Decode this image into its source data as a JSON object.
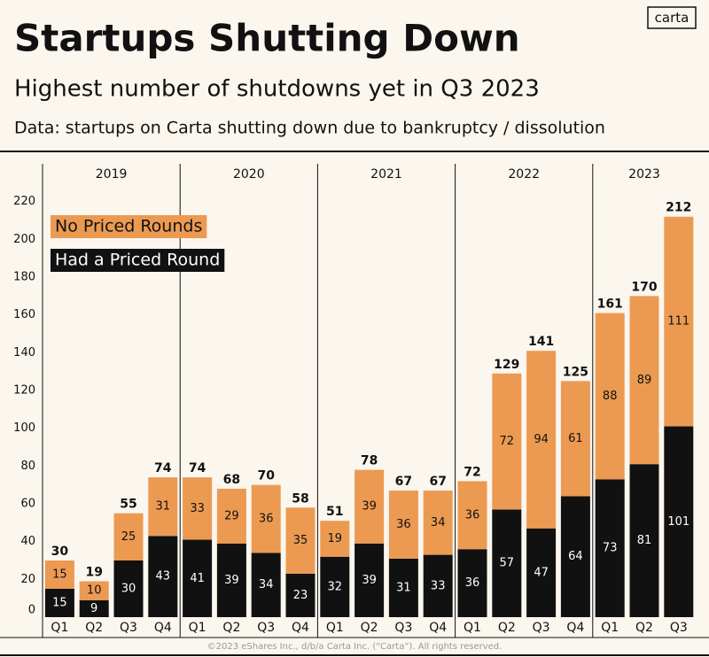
{
  "logo": "carta",
  "footer": "©2023 eShares Inc., d/b/a Carta Inc. (“Carta”). All rights reserved.",
  "chart_data": {
    "type": "stacked-bar",
    "title": "Startups Shutting Down",
    "subtitle": "Highest number of shutdowns yet in Q3 2023",
    "note": "Data: startups on Carta shutting down due to bankruptcy / dissolution",
    "groups": [
      {
        "label": "2019",
        "categories": [
          "Q1",
          "Q2",
          "Q3",
          "Q4"
        ]
      },
      {
        "label": "2020",
        "categories": [
          "Q1",
          "Q2",
          "Q3",
          "Q4"
        ]
      },
      {
        "label": "2021",
        "categories": [
          "Q1",
          "Q2",
          "Q3",
          "Q4"
        ]
      },
      {
        "label": "2022",
        "categories": [
          "Q1",
          "Q2",
          "Q3",
          "Q4"
        ]
      },
      {
        "label": "2023",
        "categories": [
          "Q1",
          "Q2",
          "Q3"
        ]
      }
    ],
    "series": [
      {
        "name": "Had a Priced Round",
        "color": "#111111",
        "values": [
          15,
          9,
          30,
          43,
          41,
          39,
          34,
          23,
          32,
          39,
          31,
          33,
          36,
          57,
          47,
          64,
          73,
          81,
          101
        ]
      },
      {
        "name": "No Priced Rounds",
        "color": "#ec9a52",
        "values": [
          15,
          10,
          25,
          31,
          33,
          29,
          36,
          35,
          19,
          39,
          36,
          34,
          36,
          72,
          94,
          61,
          88,
          89,
          111
        ]
      }
    ],
    "totals": [
      30,
      19,
      55,
      74,
      74,
      68,
      70,
      58,
      51,
      78,
      67,
      67,
      72,
      129,
      141,
      125,
      161,
      170,
      212
    ],
    "ylim": [
      0,
      240
    ],
    "yticks": [
      0,
      20,
      40,
      60,
      80,
      100,
      120,
      140,
      160,
      180,
      200,
      220
    ],
    "grid": false
  }
}
